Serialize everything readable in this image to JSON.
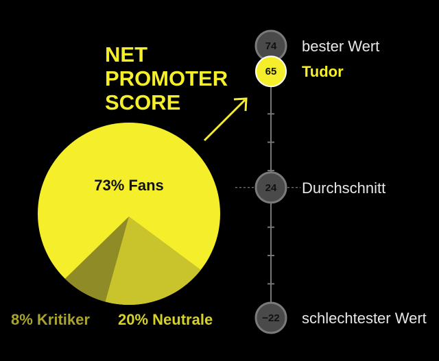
{
  "title_lines": [
    "NET",
    "PROMOTER",
    "SCORE"
  ],
  "colors": {
    "background": "#000000",
    "accent": "#f5ee2a",
    "pie_fans": "#f5ee2a",
    "pie_neutrale": "#c9c42b",
    "pie_kritiker": "#8f8b26",
    "label_neutrale": "#d7d22a",
    "label_kritiker": "#a9a42d",
    "scale_line": "#777777",
    "circle_fill": "#4a4a4a",
    "circle_stroke": "#7a7a7a",
    "text_light": "#e8e8e8"
  },
  "chart_data": [
    {
      "type": "pie",
      "slices": [
        {
          "key": "fans",
          "label": "73% Fans",
          "value": 73
        },
        {
          "key": "neutrale",
          "label": "20% Neutrale",
          "value": 20
        },
        {
          "key": "kritiker",
          "label": "8% Kritiker",
          "value": 8
        }
      ]
    },
    {
      "type": "scale",
      "range": [
        -22,
        74
      ],
      "points": [
        {
          "key": "best",
          "value": 74,
          "display": "74",
          "label": "bester Wert",
          "highlight": false
        },
        {
          "key": "tudor",
          "value": 65,
          "display": "65",
          "label": "Tudor",
          "highlight": true
        },
        {
          "key": "average",
          "value": 24,
          "display": "24",
          "label": "Durchschnitt",
          "highlight": false
        },
        {
          "key": "worst",
          "value": -22,
          "display": "−22",
          "label": "schlechtester Wert",
          "highlight": false
        }
      ]
    }
  ]
}
